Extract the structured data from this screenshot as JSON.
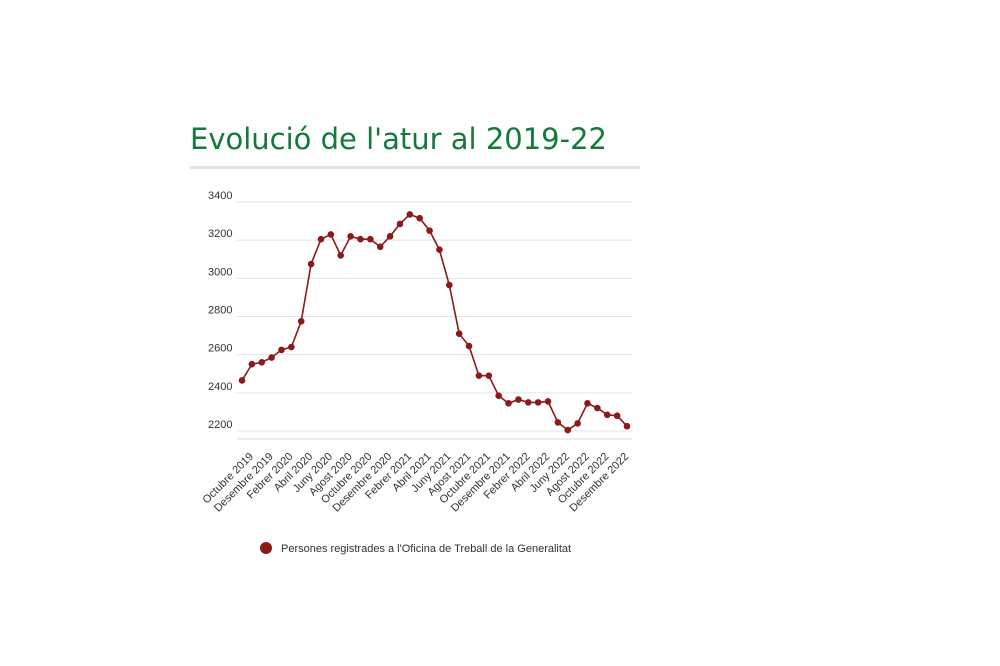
{
  "title": "Evolució de l'atur al 2019-22",
  "chart_data": {
    "type": "line",
    "title": "Evolució de l'atur al 2019-22",
    "xlabel": "",
    "ylabel": "",
    "ylim": [
      2150,
      3420
    ],
    "y_ticks": [
      2200,
      2400,
      2600,
      2800,
      3000,
      3200,
      3400
    ],
    "grid": true,
    "legend_position": "bottom",
    "color": "#8b1a1a",
    "x_tick_labels": [
      "Octubre 2019",
      "Desembre 2019",
      "Febrer 2020",
      "Abril 2020",
      "Juny 2020",
      "Agost 2020",
      "Octubre 2020",
      "Desembre 2020",
      "Febrer 2021",
      "Abril 2021",
      "Juny 2021",
      "Agost 2021",
      "Octubre 2021",
      "Desembre 2021",
      "Febrer 2022",
      "Abril 2022",
      "Juny 2022",
      "Agost 2022",
      "Octubre 2022",
      "Desembre 2022"
    ],
    "series": [
      {
        "name": "Persones registrades a l'Oficina de Treball de la Generalitat",
        "values": [
          2465,
          2550,
          2560,
          2585,
          2625,
          2640,
          2775,
          3075,
          3205,
          3230,
          3120,
          3220,
          3205,
          3205,
          3165,
          3220,
          3285,
          3335,
          3315,
          3250,
          3150,
          2965,
          2710,
          2645,
          2490,
          2490,
          2385,
          2345,
          2365,
          2350,
          2350,
          2355,
          2245,
          2205,
          2240,
          2345,
          2320,
          2285,
          2280,
          2225
        ]
      }
    ]
  }
}
